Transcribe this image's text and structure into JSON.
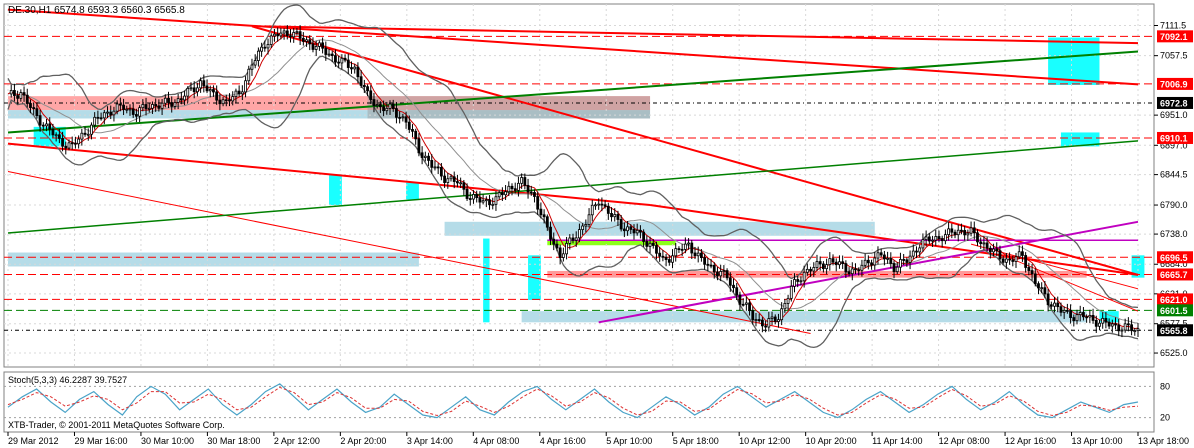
{
  "chart_data": {
    "type": "candlestick",
    "symbol_line": "DE.30,H1  6574.8 6593.3 6560.3 6565.8",
    "ylim": [
      6500,
      7150
    ],
    "y_ticks": [
      7111.5,
      7057.5,
      6951.0,
      6897.0,
      6844.5,
      6790.0,
      6738.0,
      6684.0,
      6631.0,
      6577.5,
      6525.0
    ],
    "price_labels": [
      {
        "value": 7092.1,
        "color": "#ff0000"
      },
      {
        "value": 7006.9,
        "color": "#ff0000"
      },
      {
        "value": 6972.8,
        "color": "#000000"
      },
      {
        "value": 6910.1,
        "color": "#ff0000"
      },
      {
        "value": 6696.5,
        "color": "#ff0000"
      },
      {
        "value": 6665.7,
        "color": "#ff0000"
      },
      {
        "value": 6621.0,
        "color": "#ff0000"
      },
      {
        "value": 6601.5,
        "color": "#008000"
      },
      {
        "value": 6565.8,
        "color": "#000000"
      }
    ],
    "x_labels": [
      "29 Mar 2012",
      "29 Mar 16:00",
      "30 Mar 10:00",
      "30 Mar 18:00",
      "2 Apr 12:00",
      "2 Apr 20:00",
      "3 Apr 14:00",
      "4 Apr 08:00",
      "4 Apr 16:00",
      "5 Apr 10:00",
      "5 Apr 18:00",
      "10 Apr 12:00",
      "10 Apr 20:00",
      "11 Apr 14:00",
      "12 Apr 08:00",
      "12 Apr 16:00",
      "13 Apr 10:00",
      "13 Apr 18:00"
    ],
    "close_path": [
      [
        0,
        6985
      ],
      [
        4,
        6992
      ],
      [
        8,
        6955
      ],
      [
        12,
        6930
      ],
      [
        16,
        6905
      ],
      [
        20,
        6895
      ],
      [
        24,
        6920
      ],
      [
        28,
        6945
      ],
      [
        32,
        6960
      ],
      [
        36,
        6965
      ],
      [
        40,
        6955
      ],
      [
        44,
        6968
      ],
      [
        48,
        6970
      ],
      [
        52,
        6975
      ],
      [
        56,
        6990
      ],
      [
        60,
        7010
      ],
      [
        64,
        6985
      ],
      [
        68,
        6975
      ],
      [
        72,
        6990
      ],
      [
        76,
        7040
      ],
      [
        80,
        7080
      ],
      [
        84,
        7095
      ],
      [
        88,
        7100
      ],
      [
        92,
        7085
      ],
      [
        96,
        7075
      ],
      [
        100,
        7060
      ],
      [
        104,
        7045
      ],
      [
        108,
        7035
      ],
      [
        112,
        6985
      ],
      [
        116,
        6965
      ],
      [
        120,
        6960
      ],
      [
        124,
        6940
      ],
      [
        128,
        6890
      ],
      [
        132,
        6860
      ],
      [
        136,
        6840
      ],
      [
        140,
        6830
      ],
      [
        144,
        6805
      ],
      [
        148,
        6795
      ],
      [
        152,
        6800
      ],
      [
        156,
        6820
      ],
      [
        160,
        6830
      ],
      [
        164,
        6805
      ],
      [
        168,
        6745
      ],
      [
        172,
        6700
      ],
      [
        176,
        6730
      ],
      [
        180,
        6760
      ],
      [
        184,
        6800
      ],
      [
        188,
        6770
      ],
      [
        192,
        6750
      ],
      [
        196,
        6740
      ],
      [
        200,
        6720
      ],
      [
        204,
        6690
      ],
      [
        208,
        6705
      ],
      [
        212,
        6720
      ],
      [
        216,
        6690
      ],
      [
        220,
        6675
      ],
      [
        224,
        6660
      ],
      [
        228,
        6620
      ],
      [
        232,
        6590
      ],
      [
        236,
        6575
      ],
      [
        240,
        6590
      ],
      [
        244,
        6640
      ],
      [
        248,
        6670
      ],
      [
        252,
        6680
      ],
      [
        256,
        6690
      ],
      [
        260,
        6680
      ],
      [
        264,
        6670
      ],
      [
        268,
        6690
      ],
      [
        272,
        6700
      ],
      [
        276,
        6680
      ],
      [
        280,
        6690
      ],
      [
        284,
        6720
      ],
      [
        288,
        6730
      ],
      [
        292,
        6735
      ],
      [
        296,
        6745
      ],
      [
        300,
        6740
      ],
      [
        304,
        6720
      ],
      [
        308,
        6700
      ],
      [
        312,
        6690
      ],
      [
        316,
        6700
      ],
      [
        320,
        6650
      ],
      [
        324,
        6620
      ],
      [
        328,
        6600
      ],
      [
        332,
        6592
      ],
      [
        336,
        6590
      ],
      [
        340,
        6580
      ],
      [
        344,
        6575
      ],
      [
        348,
        6570
      ],
      [
        352,
        6566
      ]
    ],
    "lower_panel": {
      "label": "Stoch(5,3,3) 46.2287 39.7527",
      "levels": [
        80,
        20
      ],
      "level_labels": [
        "80",
        "20"
      ],
      "main_line": [
        40,
        60,
        75,
        50,
        30,
        55,
        70,
        45,
        25,
        60,
        80,
        65,
        35,
        55,
        75,
        45,
        25,
        45,
        70,
        85,
        60,
        35,
        55,
        75,
        50,
        30,
        40,
        65,
        45,
        25,
        20,
        40,
        60,
        35,
        25,
        50,
        70,
        80,
        55,
        35,
        55,
        75,
        50,
        30,
        20,
        40,
        60,
        45,
        25,
        40,
        65,
        80,
        60,
        40,
        55,
        70,
        50,
        30,
        20,
        35,
        55,
        70,
        50,
        30,
        45,
        65,
        80,
        55,
        35,
        50,
        70,
        45,
        25,
        20,
        35,
        50,
        40,
        30,
        45,
        50
      ],
      "signal_line": [
        45,
        55,
        68,
        60,
        42,
        50,
        62,
        55,
        35,
        48,
        70,
        70,
        48,
        50,
        65,
        55,
        35,
        40,
        60,
        78,
        68,
        45,
        50,
        68,
        58,
        38,
        38,
        55,
        52,
        32,
        24,
        32,
        52,
        42,
        30,
        42,
        60,
        75,
        62,
        42,
        50,
        68,
        58,
        38,
        25,
        32,
        52,
        50,
        32,
        36,
        56,
        74,
        66,
        48,
        52,
        64,
        56,
        38,
        25,
        30,
        48,
        64,
        56,
        38,
        40,
        58,
        74,
        62,
        42,
        46,
        62,
        52,
        32,
        24,
        30,
        44,
        42,
        34,
        40,
        42
      ]
    },
    "watermark": "XTB-Trader, © 2001-2011 MetaQuotes Software Corp."
  },
  "colors": {
    "background": "#ffffff",
    "bull_candle": "#ffffff",
    "bear_candle": "#000000",
    "resistance": "#ff0000",
    "support_green": "#008000",
    "trend_magenta": "#c000c0",
    "zone_blue": "#add8e6",
    "zone_red": "#ff8080",
    "zone_cyan": "#00ffff",
    "zone_green": "#80ff00"
  }
}
